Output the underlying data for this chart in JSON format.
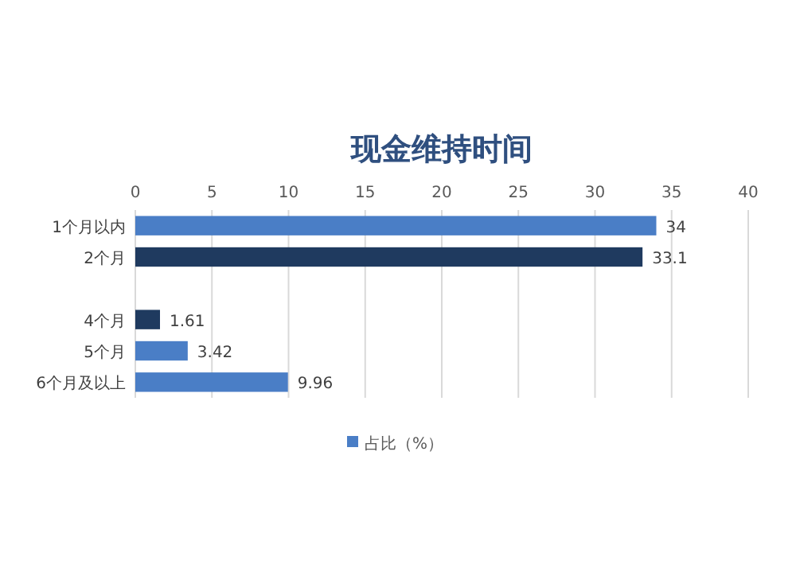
{
  "chart_data": {
    "type": "bar",
    "orientation": "horizontal",
    "title": "现金维持时间",
    "categories": [
      "1个月以内",
      "2个月",
      null,
      "4个月",
      "5个月",
      "6个月及以上"
    ],
    "series": [
      {
        "name": "占比（%）",
        "color": "#4a7ec6",
        "colors": [
          "#4a7ec6",
          "#1f3a5f",
          null,
          "#1f3a5f",
          "#4a7ec6",
          "#4a7ec6"
        ],
        "values": [
          34,
          33.1,
          null,
          1.61,
          3.42,
          9.96
        ]
      }
    ],
    "xlim": [
      0,
      40
    ],
    "xticks": [
      0,
      5,
      10,
      15,
      20,
      25,
      30,
      35,
      40
    ],
    "grid": "x",
    "legend": "bottom",
    "data_labels": true
  }
}
